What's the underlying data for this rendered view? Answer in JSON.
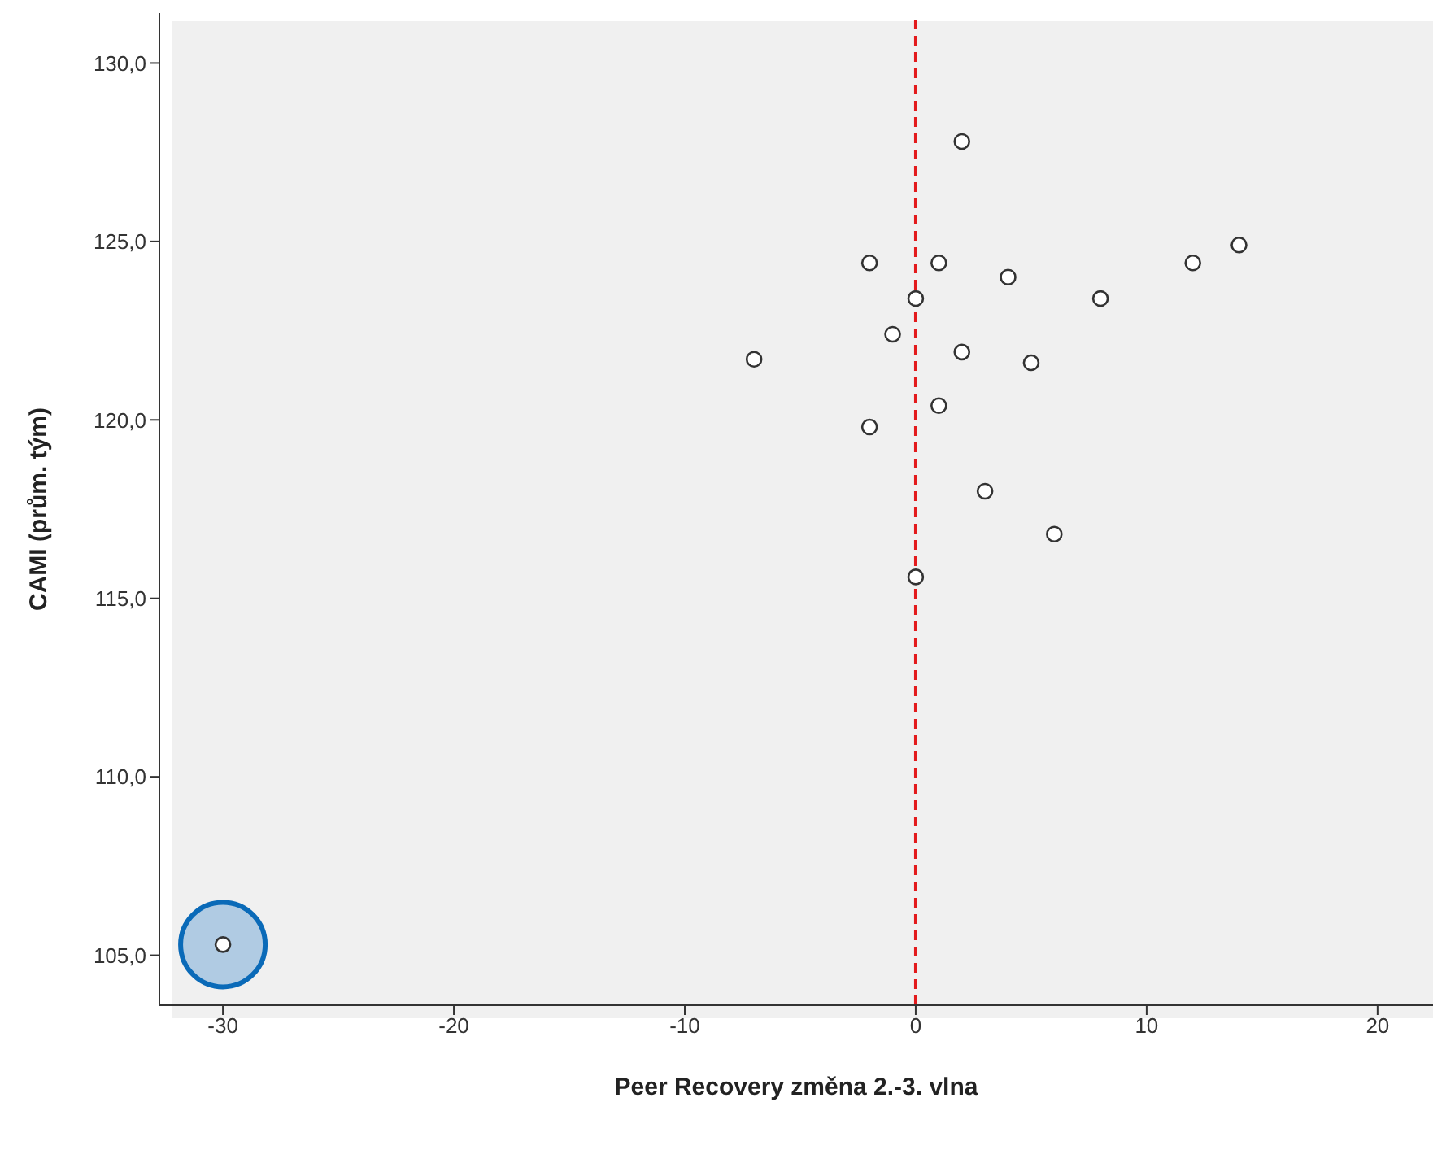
{
  "chart_data": {
    "type": "scatter",
    "xlabel": "Peer Recovery změna 2.-3. vlna",
    "ylabel": "CAMI (prům. tým)",
    "marker": "circle",
    "legend": false,
    "xlim": [
      -32.75,
      22.4
    ],
    "ylim": [
      103.6,
      131.4
    ],
    "xticks": [
      -30,
      -20,
      -10,
      0,
      10,
      20
    ],
    "yticks": [
      {
        "value": 105,
        "label": "105,0"
      },
      {
        "value": 110,
        "label": "110,0"
      },
      {
        "value": 115,
        "label": "115,0"
      },
      {
        "value": 120,
        "label": "120,0"
      },
      {
        "value": 125,
        "label": "125,0"
      },
      {
        "value": 130,
        "label": "130,0"
      }
    ],
    "ref_lines": [
      {
        "axis": "x",
        "value": 0,
        "color": "#e31a1c",
        "line_style": "dashed"
      }
    ],
    "series": [
      {
        "color": "#333333",
        "x": [
          2,
          -2,
          1,
          14,
          12,
          4,
          8,
          0,
          -1,
          2,
          -7,
          5,
          1,
          -2,
          3,
          6,
          0,
          -30
        ],
        "values": [
          127.8,
          124.4,
          124.4,
          124.9,
          124.4,
          124.0,
          123.4,
          123.4,
          122.4,
          121.9,
          121.7,
          121.6,
          120.4,
          119.8,
          118.0,
          116.8,
          115.6,
          105.3
        ]
      }
    ]
  }
}
